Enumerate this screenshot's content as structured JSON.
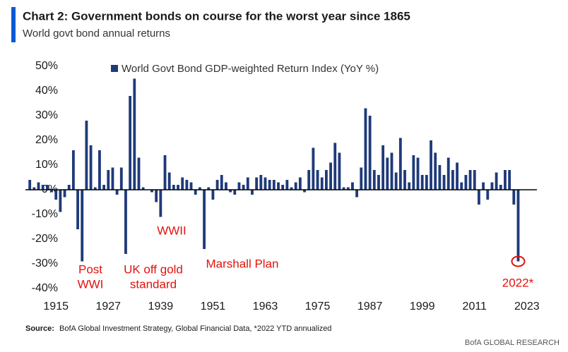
{
  "chart_data": {
    "type": "bar",
    "title": "Chart 2: Government bonds on course for the worst year since 1865",
    "subtitle": "World govt bond annual returns",
    "series": [
      {
        "name": "World Govt Bond GDP-weighted Return Index (YoY %)",
        "color": "#1f3a7a",
        "values": [
          4,
          1,
          3,
          2,
          2,
          -1,
          -4,
          -9,
          -3,
          2,
          16,
          -16,
          -29,
          28,
          18,
          1,
          16,
          2,
          8,
          9,
          -2,
          9,
          -26,
          38,
          45,
          13,
          1,
          0,
          -1,
          -5,
          -11,
          14,
          7,
          2,
          2,
          5,
          4,
          3,
          -2,
          1,
          -24,
          1,
          -4,
          4,
          6,
          3,
          -1,
          -2,
          3,
          2,
          5,
          -2,
          5,
          6,
          5,
          4,
          4,
          3,
          2,
          4,
          1,
          3,
          5,
          -1,
          8,
          17,
          8,
          5,
          8,
          11,
          19,
          15,
          1,
          1,
          3,
          -3,
          9,
          33,
          30,
          8,
          6,
          18,
          13,
          15,
          7,
          21,
          8,
          3,
          14,
          13,
          6,
          6,
          20,
          15,
          10,
          6,
          13,
          8,
          11,
          3,
          6,
          8,
          8,
          -6,
          3,
          -4,
          3,
          7,
          2,
          8,
          8,
          -6,
          -29
        ]
      }
    ],
    "x_start": 1909,
    "xlim": [
      1908,
      2024
    ],
    "xticks": [
      1915,
      1927,
      1939,
      1951,
      1963,
      1975,
      1987,
      1999,
      2011,
      2023
    ],
    "ylim": [
      -40,
      50
    ],
    "yticks": [
      {
        "value": -40,
        "label": "-40%"
      },
      {
        "value": -30,
        "label": "-30%"
      },
      {
        "value": -20,
        "label": "-20%"
      },
      {
        "value": -10,
        "label": "-10%"
      },
      {
        "value": 0,
        "label": "0%"
      },
      {
        "value": 10,
        "label": "10%"
      },
      {
        "value": 20,
        "label": "20%"
      },
      {
        "value": 30,
        "label": "30%"
      },
      {
        "value": 40,
        "label": "40%"
      },
      {
        "value": 50,
        "label": "50%"
      }
    ],
    "annotations": [
      [
        "Post",
        "WWI"
      ],
      [
        "UK off gold",
        "standard"
      ],
      [
        "WWII"
      ],
      [
        "Marshall Plan"
      ],
      [
        "2022*"
      ]
    ],
    "annotation_color": "#e3120b",
    "source_label": "Source:",
    "source": "BofA Global Investment Strategy, Global Financial Data, *2022  YTD annualized",
    "brand": "BofA GLOBAL RESEARCH"
  }
}
